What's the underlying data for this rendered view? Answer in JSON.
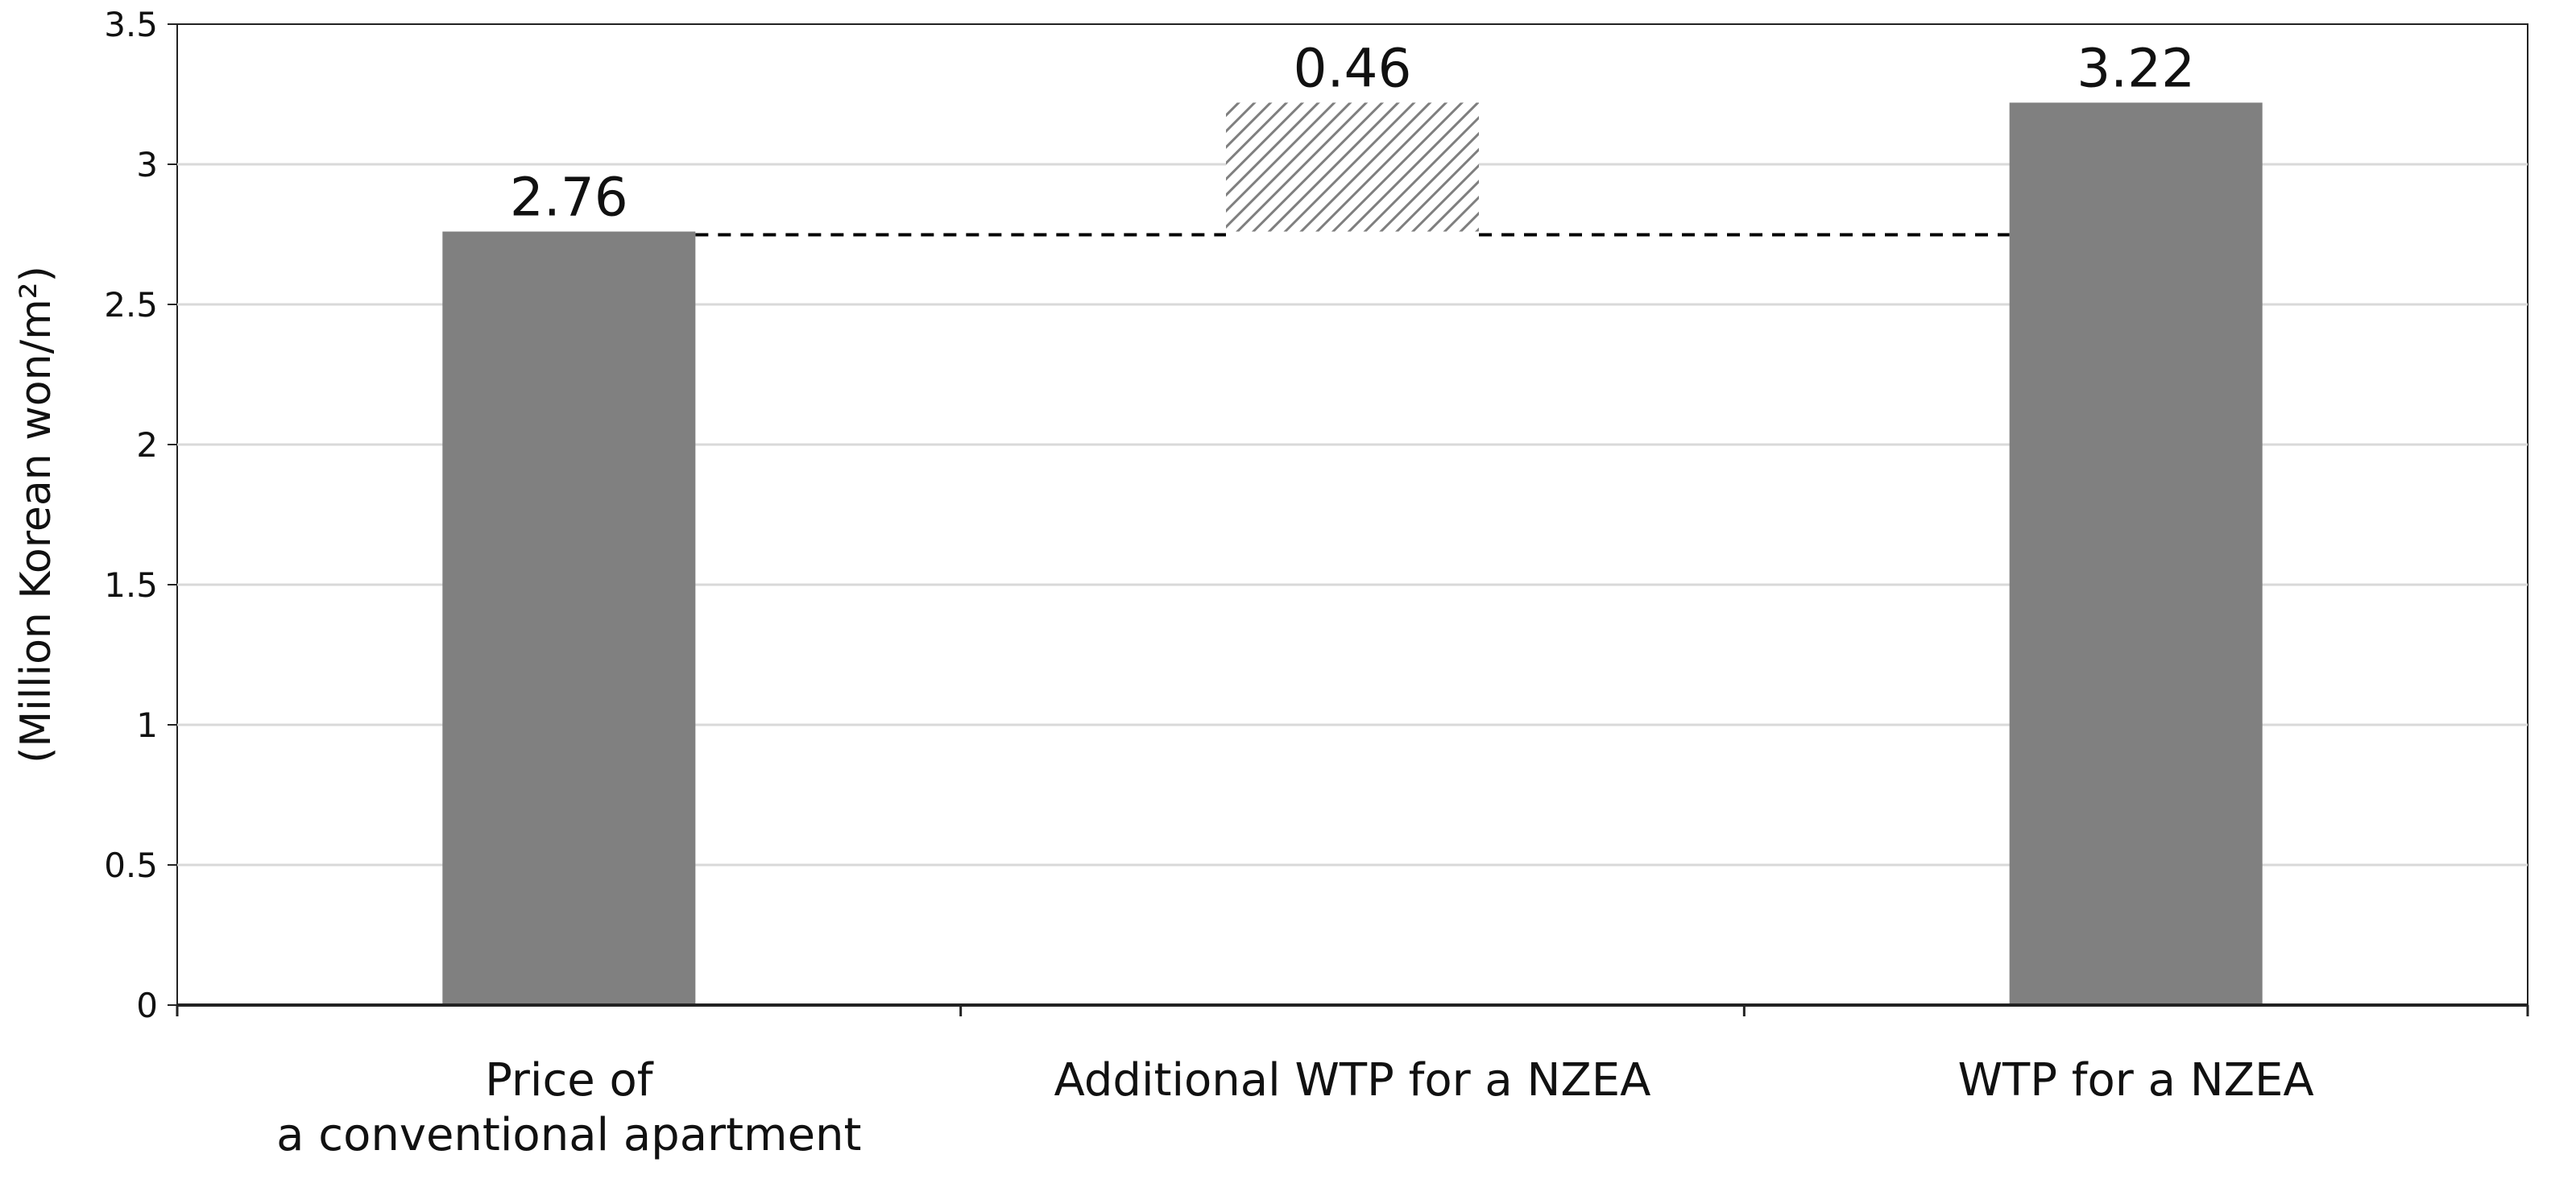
{
  "chart_data": {
    "type": "bar",
    "subtype": "waterfall",
    "categories": [
      [
        "Price of",
        "a conventional apartment"
      ],
      [
        "Additional WTP for a NZEA"
      ],
      [
        "WTP for a NZEA"
      ]
    ],
    "series": [
      {
        "values": [
          2.76,
          0.46,
          3.22
        ],
        "base": [
          0,
          2.76,
          0
        ],
        "styles": [
          "solid",
          "hatched",
          "solid"
        ],
        "labels": [
          "2.76",
          "0.46",
          "3.22"
        ]
      }
    ],
    "title": "",
    "xlabel": "",
    "ylabel": "(Million Korean won/m²)",
    "ylim": [
      0,
      3.5
    ],
    "yticks": [
      0,
      0.5,
      1,
      1.5,
      2,
      2.5,
      3,
      3.5
    ],
    "ytick_labels": [
      "0",
      "0.5",
      "1",
      "1.5",
      "2",
      "2.5",
      "3",
      "3.5"
    ],
    "grid": true,
    "legend": "none",
    "connector_line": "dashed",
    "colors": {
      "bar": "#808080",
      "hatch": "#7f7f7f",
      "grid": "#d9d9d9",
      "axis": "#222222",
      "text": "#111111"
    }
  }
}
